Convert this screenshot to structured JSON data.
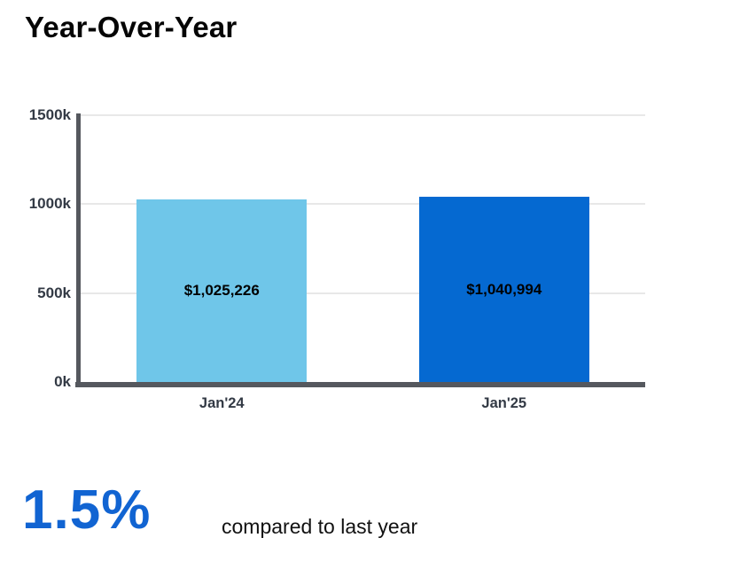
{
  "title": "Year-Over-Year",
  "chart_data": {
    "type": "bar",
    "title": "Year-Over-Year",
    "categories": [
      "Jan'24",
      "Jan'25"
    ],
    "values": [
      1025226,
      1040994
    ],
    "value_labels": [
      "$1,025,226",
      "$1,040,994"
    ],
    "bar_colors": [
      "#6fc6e9",
      "#0569d1"
    ],
    "xlabel": "",
    "ylabel": "",
    "ylim": [
      0,
      1500000
    ],
    "yticks": [
      {
        "label": "0k",
        "value": 0
      },
      {
        "label": "500k",
        "value": 500000
      },
      {
        "label": "1000k",
        "value": 1000000
      },
      {
        "label": "1500k",
        "value": 1500000
      }
    ],
    "grid": true,
    "legend": "none"
  },
  "summary": {
    "percent": "1.5%",
    "caption": "compared to last year"
  },
  "colors": {
    "bar_current": "#0569d1",
    "bar_previous": "#6fc6e9",
    "accent_text": "#1164d2",
    "axis": "#55585e",
    "gridline": "#e8e8e8",
    "tick_text": "#333a45"
  }
}
